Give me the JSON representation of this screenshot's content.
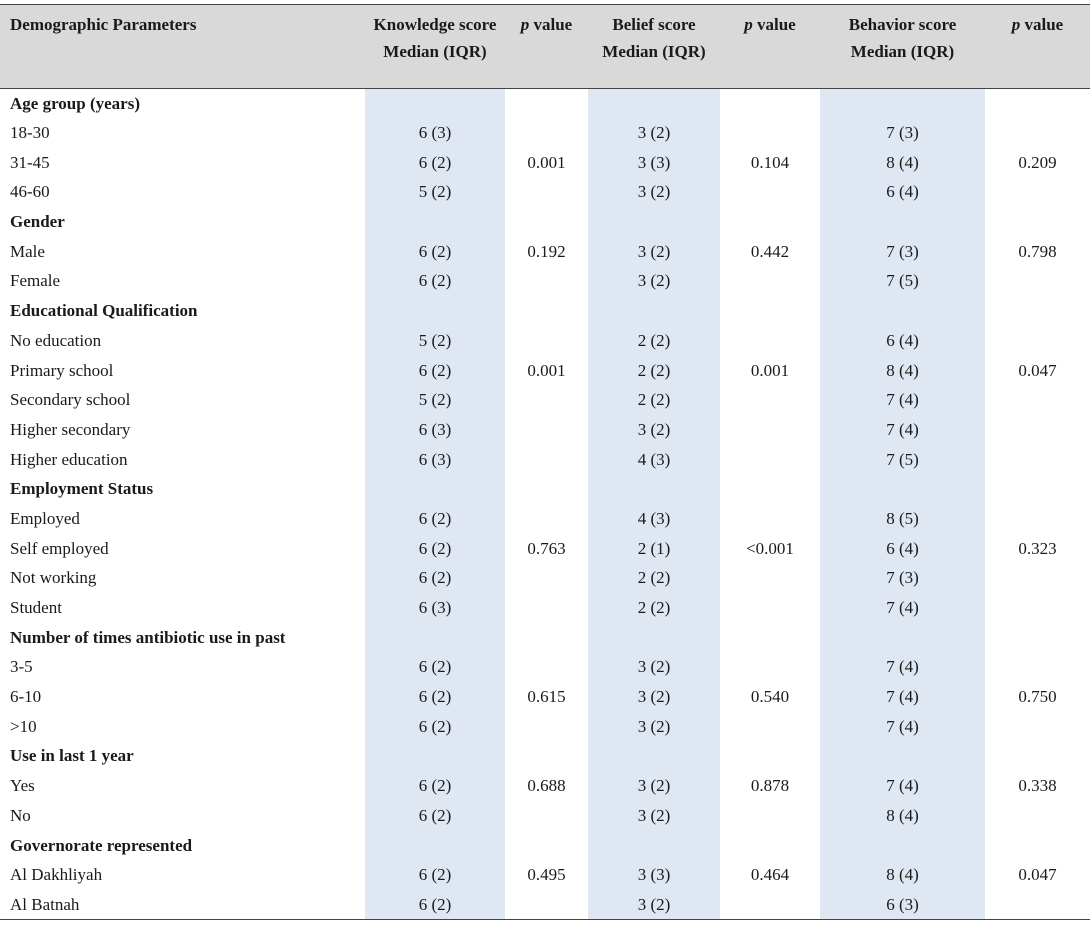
{
  "table": {
    "header": [
      "Demographic Parameters",
      "Knowledge score Median (IQR)",
      {
        "em": "p",
        "rest": "value"
      },
      "Belief score Median (IQR)",
      {
        "em": "p",
        "rest": "value"
      },
      "Behavior score Median (IQR)",
      {
        "em": "p",
        "rest": "value"
      }
    ],
    "groups": [
      {
        "title": "Age group (years)",
        "rows": [
          {
            "label": "18-30",
            "knowledge": "6 (3)",
            "belief": "3 (2)",
            "behavior": "7 (3)"
          },
          {
            "label": "31-45",
            "knowledge": "6 (2)",
            "knowledge_p": "0.001",
            "belief": "3 (3)",
            "belief_p": "0.104",
            "behavior": "8 (4)",
            "behavior_p": "0.209"
          },
          {
            "label": "46-60",
            "knowledge": "5 (2)",
            "belief": "3 (2)",
            "behavior": "6 (4)"
          }
        ]
      },
      {
        "title": "Gender",
        "rows": [
          {
            "label": "Male",
            "knowledge": "6 (2)",
            "knowledge_p": "0.192",
            "belief": "3 (2)",
            "belief_p": "0.442",
            "behavior": "7 (3)",
            "behavior_p": "0.798"
          },
          {
            "label": "Female",
            "knowledge": "6 (2)",
            "belief": "3 (2)",
            "behavior": "7 (5)"
          }
        ]
      },
      {
        "title": "Educational Qualification",
        "rows": [
          {
            "label": "No education",
            "knowledge": "5 (2)",
            "belief": "2 (2)",
            "behavior": "6 (4)"
          },
          {
            "label": "Primary school",
            "knowledge": "6 (2)",
            "knowledge_p": "0.001",
            "belief": "2 (2)",
            "belief_p": "0.001",
            "behavior": "8 (4)",
            "behavior_p": "0.047"
          },
          {
            "label": "Secondary school",
            "knowledge": "5 (2)",
            "belief": "2 (2)",
            "behavior": "7 (4)"
          },
          {
            "label": "Higher secondary",
            "knowledge": "6 (3)",
            "belief": "3 (2)",
            "behavior": "7 (4)"
          },
          {
            "label": "Higher education",
            "knowledge": "6 (3)",
            "belief": "4 (3)",
            "behavior": "7 (5)"
          }
        ]
      },
      {
        "title": "Employment Status",
        "rows": [
          {
            "label": "Employed",
            "knowledge": "6 (2)",
            "belief": "4 (3)",
            "behavior": "8 (5)"
          },
          {
            "label": "Self employed",
            "knowledge": "6 (2)",
            "knowledge_p": "0.763",
            "belief": "2 (1)",
            "belief_p": "<0.001",
            "behavior": "6 (4)",
            "behavior_p": "0.323"
          },
          {
            "label": "Not working",
            "knowledge": "6 (2)",
            "belief": "2 (2)",
            "behavior": "7 (3)"
          },
          {
            "label": "Student",
            "knowledge": "6 (3)",
            "belief": "2 (2)",
            "behavior": "7 (4)"
          }
        ]
      },
      {
        "title": "Number of times antibiotic use in past",
        "rows": [
          {
            "label": "3-5",
            "knowledge": "6 (2)",
            "belief": "3 (2)",
            "behavior": "7 (4)"
          },
          {
            "label": "6-10",
            "knowledge": "6 (2)",
            "knowledge_p": "0.615",
            "belief": "3 (2)",
            "belief_p": "0.540",
            "behavior": "7 (4)",
            "behavior_p": "0.750"
          },
          {
            "label": ">10",
            "knowledge": "6 (2)",
            "belief": "3 (2)",
            "behavior": "7 (4)"
          }
        ]
      },
      {
        "title": "Use in last 1 year",
        "rows": [
          {
            "label": "Yes",
            "knowledge": "6 (2)",
            "knowledge_p": "0.688",
            "belief": "3 (2)",
            "belief_p": "0.878",
            "behavior": "7 (4)",
            "behavior_p": "0.338"
          },
          {
            "label": "No",
            "knowledge": "6 (2)",
            "belief": "3 (2)",
            "behavior": "8 (4)"
          }
        ]
      },
      {
        "title": "Governorate represented",
        "rows": [
          {
            "label": "Al Dakhliyah",
            "knowledge": "6 (2)",
            "knowledge_p": "0.495",
            "belief": "3 (3)",
            "belief_p": "0.464",
            "behavior": "8 (4)",
            "behavior_p": "0.047"
          },
          {
            "label": "Al Batnah",
            "knowledge": "6 (2)",
            "belief": "3 (2)",
            "behavior": "6 (3)"
          }
        ]
      }
    ]
  }
}
